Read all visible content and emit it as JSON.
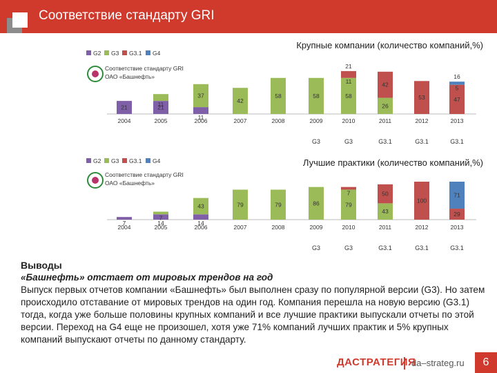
{
  "header": {
    "title": "Соответствие стандарту GRI"
  },
  "colors": {
    "g2": "#7f5fa8",
    "g3": "#9bbb59",
    "g31": "#c0504d",
    "g4": "#4f81bd",
    "accent": "#d03a2c"
  },
  "chart_data": [
    {
      "type": "bar",
      "stacked": true,
      "title": "Крупные компании (количество компаний,%)",
      "legend": [
        "G2",
        "G3",
        "G3.1",
        "G4"
      ],
      "badge_label": "Соответствие стандарту GRI ОАО «Башнефть»",
      "categories": [
        "2004",
        "2005",
        "2006",
        "2007",
        "2008",
        "2009",
        "2010",
        "2011",
        "2012",
        "2013"
      ],
      "bashneft": [
        "",
        "",
        "",
        "",
        "",
        "G3",
        "G3",
        "G3.1",
        "G3.1",
        "G3.1"
      ],
      "series": [
        {
          "name": "G2",
          "values": [
            21,
            21,
            11,
            0,
            0,
            0,
            0,
            0,
            0,
            0
          ]
        },
        {
          "name": "G3",
          "values": [
            0,
            11,
            37,
            42,
            58,
            58,
            58,
            26,
            0,
            0
          ]
        },
        {
          "name": "G3.1",
          "values": [
            0,
            0,
            0,
            0,
            0,
            0,
            11,
            42,
            53,
            47
          ]
        },
        {
          "name": "G4",
          "values": [
            0,
            0,
            0,
            0,
            0,
            0,
            0,
            0,
            0,
            5
          ]
        }
      ],
      "extra_labels": [
        {
          "category": "2010",
          "value": "21"
        },
        {
          "category": "2013",
          "value": "16"
        }
      ],
      "ylim": [
        0,
        80
      ]
    },
    {
      "type": "bar",
      "stacked": true,
      "title": "Лучшие практики (количество компаний,%)",
      "legend": [
        "G2",
        "G3",
        "G3.1",
        "G4"
      ],
      "badge_label": "Соответствие стандарту GRI ОАО «Башнефть»",
      "categories": [
        "2004",
        "2005",
        "2006",
        "2007",
        "2008",
        "2009",
        "2010",
        "2011",
        "2012",
        "2013"
      ],
      "bashneft": [
        "",
        "",
        "",
        "",
        "",
        "G3",
        "G3",
        "G3.1",
        "G3.1",
        "G3.1"
      ],
      "series": [
        {
          "name": "G2",
          "values": [
            7,
            14,
            14,
            0,
            0,
            0,
            0,
            0,
            0,
            0
          ]
        },
        {
          "name": "G3",
          "values": [
            0,
            7,
            43,
            79,
            79,
            86,
            79,
            43,
            0,
            0
          ]
        },
        {
          "name": "G3.1",
          "values": [
            0,
            0,
            0,
            0,
            0,
            0,
            7,
            50,
            100,
            29
          ]
        },
        {
          "name": "G4",
          "values": [
            0,
            0,
            0,
            0,
            0,
            0,
            0,
            0,
            0,
            71
          ]
        }
      ],
      "ylim": [
        0,
        110
      ]
    }
  ],
  "conclusions": {
    "heading": "Выводы",
    "subheading": "«Башнефть» отстает от мировых трендов на год",
    "text": "Выпуск первых отчетов компании «Башнефть» был выполнен сразу по популярной версии (G3). Но затем происходило отставание от мировых трендов на один год. Компания перешла на новую версию (G3.1) тогда, когда уже больше половины крупных компаний и все лучшие практики выпускали отчеты по этой версии. Переход на G4 еще не произошел, хотя уже 71% компаний лучших практик и 5% крупных компаний выпускают отчеты по данному стандарту."
  },
  "footer": {
    "brand": "ДАСТРАТЕГИЯ",
    "site": "da–strateg.ru",
    "page": "6"
  }
}
